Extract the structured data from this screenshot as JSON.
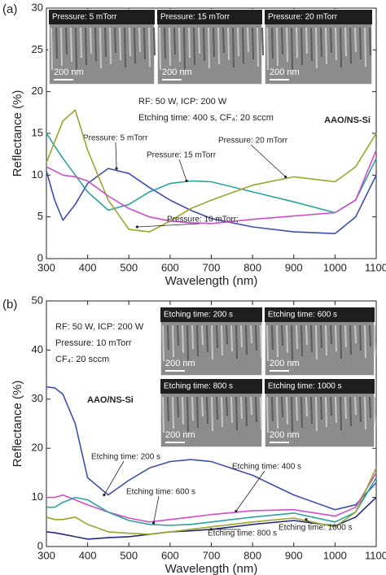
{
  "chart_data": [
    {
      "type": "line",
      "panel": "(a)",
      "xlabel": "Wavelength (nm)",
      "ylabel": "Reflectance (%)",
      "xlim": [
        300,
        1100
      ],
      "xticks": [
        300,
        400,
        500,
        600,
        700,
        800,
        900,
        1000,
        1100
      ],
      "ylim": [
        0,
        30
      ],
      "yticks": [
        0,
        5,
        10,
        15,
        20,
        25,
        30
      ],
      "x": [
        300,
        320,
        340,
        370,
        400,
        450,
        500,
        550,
        600,
        650,
        700,
        800,
        900,
        1000,
        1050,
        1100
      ],
      "series": [
        {
          "name": "Pressure: 5 mTorr",
          "color": "#3a4fb0",
          "values": [
            10.5,
            7,
            4.6,
            6.5,
            9,
            10.8,
            10.2,
            8.5,
            7,
            5.8,
            4.8,
            3.8,
            3.2,
            3,
            5,
            10
          ]
        },
        {
          "name": "Pressure: 15 mTorr",
          "color": "#2aa3a0",
          "values": [
            15,
            13.5,
            12,
            10,
            8,
            5.8,
            6.5,
            8,
            9,
            9.3,
            9.2,
            8,
            6.8,
            5.5,
            7,
            12
          ]
        },
        {
          "name": "Pressure: 20 mTorr",
          "color": "#9aa52a",
          "values": [
            11.5,
            14,
            16.5,
            17.8,
            13,
            7,
            3.5,
            3.2,
            4.5,
            6,
            7,
            8.8,
            9.8,
            9.2,
            11,
            15
          ]
        },
        {
          "name": "Pressure: 10 mTorr;",
          "color": "#d04cc8",
          "values": [
            11,
            10.5,
            10,
            9.8,
            9.3,
            7.5,
            6,
            5,
            4.5,
            4.3,
            4.2,
            4.7,
            5.1,
            5.5,
            7,
            13
          ]
        }
      ],
      "notes": [
        "RF: 50 W, ICP: 200 W",
        "Etching time: 400 s, CF₄: 20 sccm",
        "AAO/NS-Si"
      ],
      "insets": [
        {
          "label": "Pressure: 5 mTorr",
          "scale": "200 nm"
        },
        {
          "label": "Pressure: 15 mTorr",
          "scale": "200 nm"
        },
        {
          "label": "Pressure: 20 mTorr",
          "scale": "200 nm"
        }
      ]
    },
    {
      "type": "line",
      "panel": "(b)",
      "xlabel": "Wavelength (nm)",
      "ylabel": "Reflectance (%)",
      "xlim": [
        300,
        1100
      ],
      "xticks": [
        300,
        400,
        500,
        600,
        700,
        800,
        900,
        1000,
        1100
      ],
      "ylim": [
        0,
        50
      ],
      "yticks": [
        0,
        10,
        20,
        30,
        40,
        50
      ],
      "x": [
        300,
        320,
        340,
        370,
        400,
        450,
        500,
        550,
        600,
        650,
        700,
        800,
        900,
        1000,
        1050,
        1100
      ],
      "series": [
        {
          "name": "Etching time: 200 s",
          "color": "#3a4fb0",
          "values": [
            32.5,
            32.3,
            31,
            25,
            14,
            10.5,
            13.5,
            16,
            17.3,
            17.7,
            17.3,
            14.5,
            10.5,
            7.5,
            8.5,
            13
          ]
        },
        {
          "name": "Etching time: 400 s",
          "color": "#d04cc8",
          "values": [
            10,
            10,
            10.5,
            9.5,
            8.5,
            7,
            5.8,
            5,
            5.5,
            6,
            6.5,
            7.3,
            7.5,
            6.2,
            8,
            15
          ]
        },
        {
          "name": "Etching time: 600 s",
          "color": "#2aa3a0",
          "values": [
            8,
            8,
            9,
            10,
            9.5,
            7,
            5.3,
            4.5,
            4.3,
            4.5,
            5,
            6,
            6.8,
            5,
            7,
            14
          ]
        },
        {
          "name": "Etching time: 800 s",
          "color": "#232a80",
          "values": [
            3,
            2.8,
            2.5,
            2,
            1.5,
            1.8,
            2,
            2.5,
            3,
            3.2,
            3.5,
            4.5,
            5.3,
            4.2,
            6,
            10
          ]
        },
        {
          "name": "Etching time: 1000 s",
          "color": "#9aa52a",
          "values": [
            6,
            5.5,
            5.5,
            6,
            4.5,
            3,
            2.7,
            2.5,
            3,
            3.5,
            4,
            5,
            5.8,
            4,
            7,
            16
          ]
        }
      ],
      "notes": [
        "RF: 50 W, ICP: 200 W",
        "Pressure: 10 mTorr",
        "CF₄: 20 sccm",
        "AAO/NS-Si"
      ],
      "insets": [
        {
          "label": "Etching time: 200 s",
          "scale": "200 nm"
        },
        {
          "label": "Etching time: 600 s",
          "scale": "200 nm"
        },
        {
          "label": "Etching time: 800 s",
          "scale": "200 nm"
        },
        {
          "label": "Etching time: 1000 s",
          "scale": "200 nm"
        }
      ]
    }
  ]
}
